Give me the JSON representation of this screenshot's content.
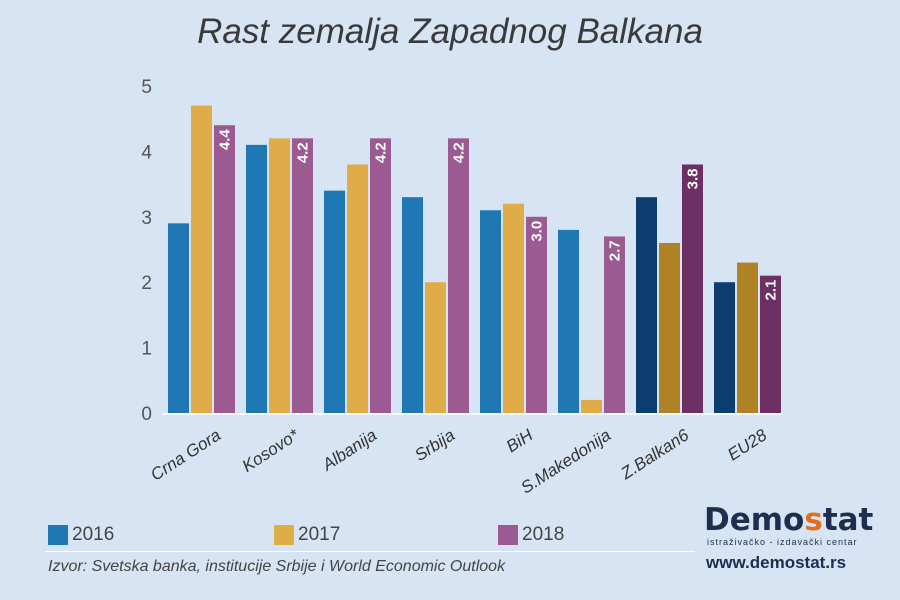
{
  "title": "Rast zemalja Zapadnog Balkana",
  "chart_data": {
    "type": "bar",
    "title": "Rast zemalja Zapadnog Balkana",
    "xlabel": "",
    "ylabel": "",
    "ylim": [
      0,
      5
    ],
    "yticks": [
      0,
      1,
      2,
      3,
      4,
      5
    ],
    "categories": [
      "Crna Gora",
      "Kosovo*",
      "Albanija",
      "Srbija",
      "BiH",
      "S.Makedonija",
      "Z.Balkan6",
      "EU28"
    ],
    "series": [
      {
        "name": "2016",
        "values": [
          2.9,
          4.1,
          3.4,
          3.3,
          3.1,
          2.8,
          3.3,
          2.0
        ]
      },
      {
        "name": "2017",
        "values": [
          4.7,
          4.2,
          3.8,
          2.0,
          3.2,
          0.2,
          2.6,
          2.3
        ]
      },
      {
        "name": "2018",
        "values": [
          4.4,
          4.2,
          4.2,
          4.2,
          3.0,
          2.7,
          3.8,
          2.1
        ]
      }
    ],
    "data_labels": {
      "series": "2018",
      "labels": [
        "4.4",
        "4.2",
        "4.2",
        "4.2",
        "3.0",
        "2.7",
        "3.8",
        "2.1"
      ]
    },
    "colors": {
      "2016": "#1f77b4",
      "2017": "#e0ac48",
      "2018": "#9b5a91",
      "2016_aggregate": "#0b3d6e",
      "2017_aggregate": "#b08226",
      "2018_aggregate": "#6e2f64"
    },
    "aggregate_categories": [
      "Z.Balkan6",
      "EU28"
    ],
    "grid": false,
    "legend": "bottom"
  },
  "legend": [
    {
      "label": "2016",
      "color": "#1f77b4"
    },
    {
      "label": "2017",
      "color": "#e0ac48"
    },
    {
      "label": "2018",
      "color": "#9b5a91"
    }
  ],
  "source": "Izvor: Svetska banka, institucije Srbije i World Economic Outlook",
  "logo": {
    "part1": "Demo",
    "accent": "s",
    "part2": "tat"
  },
  "tagline": "istraživačko - izdavački centar",
  "website": "www.demostat.rs"
}
